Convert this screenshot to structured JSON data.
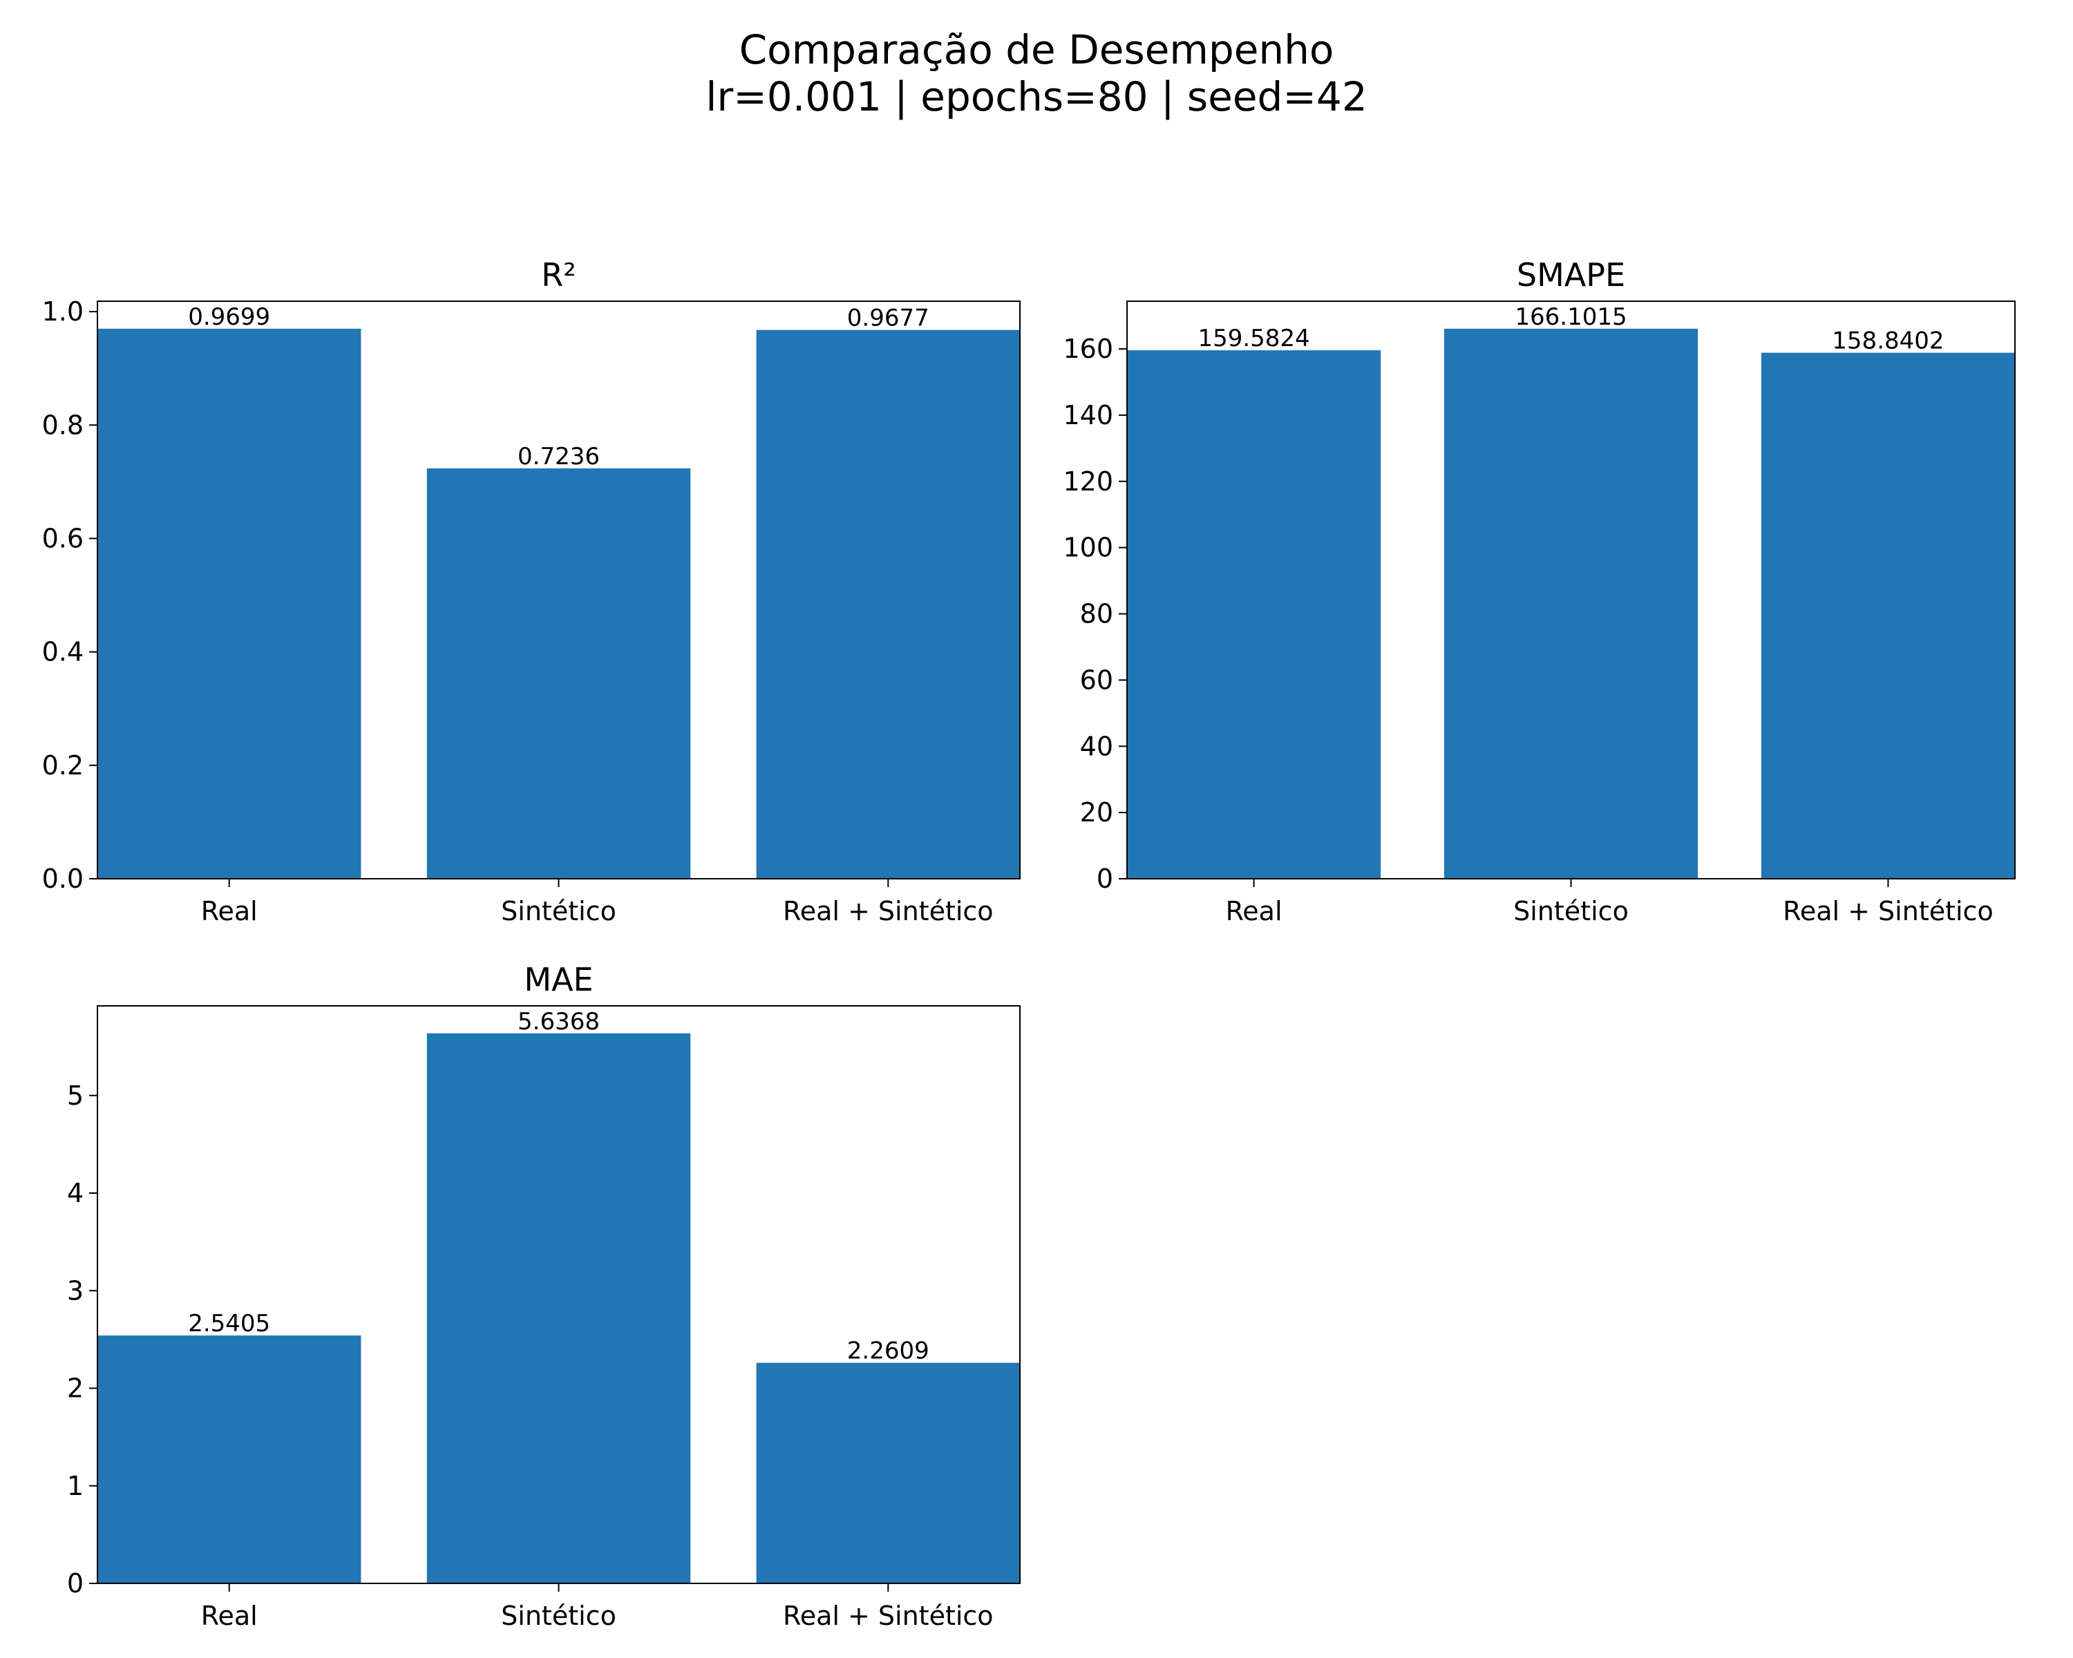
{
  "figure": {
    "title_line1": "Comparação de Desempenho",
    "title_line2": "lr=0.001 | epochs=80 | seed=42"
  },
  "colors": {
    "bar": "#2077b4",
    "axis": "#000000",
    "background": "#ffffff"
  },
  "chart_data": [
    {
      "type": "bar",
      "title": "R²",
      "categories": [
        "Real",
        "Sintético",
        "Real + Sintético"
      ],
      "values": [
        0.9699,
        0.7236,
        0.9677
      ],
      "value_labels": [
        "0.9699",
        "0.7236",
        "0.9677"
      ],
      "ylim": [
        0,
        1.0184
      ],
      "yticks": [
        0.0,
        0.2,
        0.4,
        0.6,
        0.8,
        1.0
      ],
      "ytick_labels": [
        "0.0",
        "0.2",
        "0.4",
        "0.6",
        "0.8",
        "1.0"
      ],
      "xlabel": "",
      "ylabel": "",
      "grid": false
    },
    {
      "type": "bar",
      "title": "SMAPE",
      "categories": [
        "Real",
        "Sintético",
        "Real + Sintético"
      ],
      "values": [
        159.5824,
        166.1015,
        158.8402
      ],
      "value_labels": [
        "159.5824",
        "166.1015",
        "158.8402"
      ],
      "ylim": [
        0,
        174.4066
      ],
      "yticks": [
        0,
        20,
        40,
        60,
        80,
        100,
        120,
        140,
        160
      ],
      "ytick_labels": [
        "0",
        "20",
        "40",
        "60",
        "80",
        "100",
        "120",
        "140",
        "160"
      ],
      "xlabel": "",
      "ylabel": "",
      "grid": false
    },
    {
      "type": "bar",
      "title": "MAE",
      "categories": [
        "Real",
        "Sintético",
        "Real + Sintético"
      ],
      "values": [
        2.5405,
        5.6368,
        2.2609
      ],
      "value_labels": [
        "2.5405",
        "5.6368",
        "2.2609"
      ],
      "ylim": [
        0,
        5.9186
      ],
      "yticks": [
        0,
        1,
        2,
        3,
        4,
        5
      ],
      "ytick_labels": [
        "0",
        "1",
        "2",
        "3",
        "4",
        "5"
      ],
      "xlabel": "",
      "ylabel": "",
      "grid": false
    }
  ]
}
